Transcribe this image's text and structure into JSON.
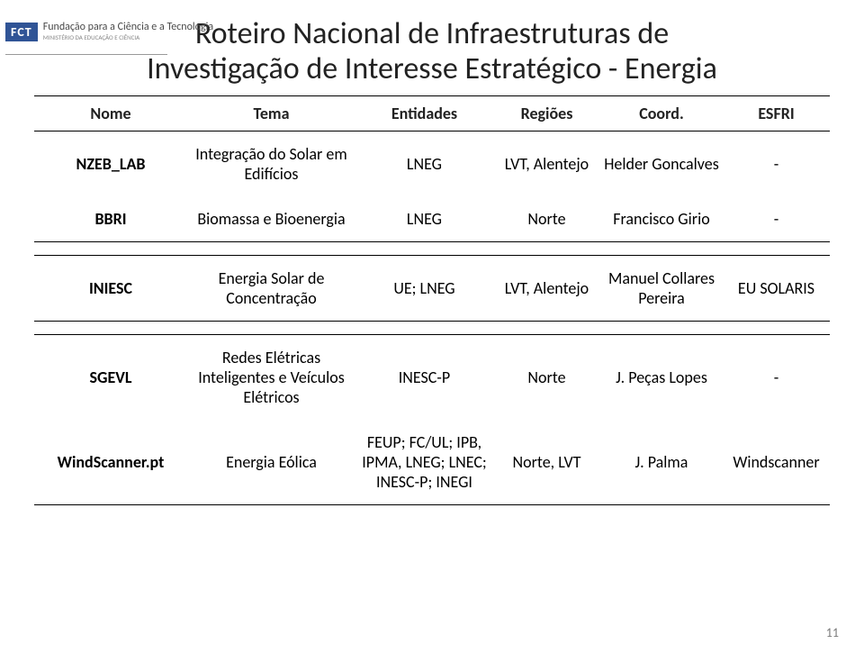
{
  "logo": {
    "abbr": "FCT",
    "name": "Fundação para a Ciência e a Tecnologia",
    "sub": "MINISTÉRIO DA EDUCAÇÃO E CIÊNCIA"
  },
  "title_line1": "Roteiro Nacional de Infraestruturas de",
  "title_line2": "Investigação de Interesse Estratégico - Energia",
  "headers": {
    "nome": "Nome",
    "tema": "Tema",
    "entidades": "Entidades",
    "regioes": "Regiões",
    "coord": "Coord.",
    "esfri": "ESFRI"
  },
  "rows": [
    {
      "nome": "NZEB_LAB",
      "tema": "Integração do Solar em Edifícios",
      "ent": "LNEG",
      "reg": "LVT, Alentejo",
      "coord": "Helder Goncalves",
      "esfri": "-"
    },
    {
      "nome": "BBRI",
      "tema": "Biomassa e Bioenergia",
      "ent": "LNEG",
      "reg": "Norte",
      "coord": "Francisco Girio",
      "esfri": "-"
    },
    {
      "nome": "INIESC",
      "tema": "Energia Solar de Concentração",
      "ent": "UE; LNEG",
      "reg": "LVT, Alentejo",
      "coord": "Manuel Collares Pereira",
      "esfri": "EU SOLARIS"
    },
    {
      "nome": "SGEVL",
      "tema": "Redes Elétricas Inteligentes e Veículos Elétricos",
      "ent": "INESC-P",
      "reg": "Norte",
      "coord": "J. Peças Lopes",
      "esfri": "-"
    },
    {
      "nome": "WindScanner.pt",
      "tema": "Energia Eólica",
      "ent": "FEUP; FC/UL; IPB, IPMA, LNEG; LNEC; INESC-P; INEGI",
      "reg": "Norte, LVT",
      "coord": "J. Palma",
      "esfri": "Windscanner"
    }
  ],
  "page_number": "11",
  "style": {
    "title_fontsize": 34,
    "header_fontsize": 18,
    "cell_fontsize": 18,
    "border_color": "#000000",
    "text_color": "#222222",
    "page_num_color": "#7a7a7a",
    "logo_bg": "#305496"
  }
}
